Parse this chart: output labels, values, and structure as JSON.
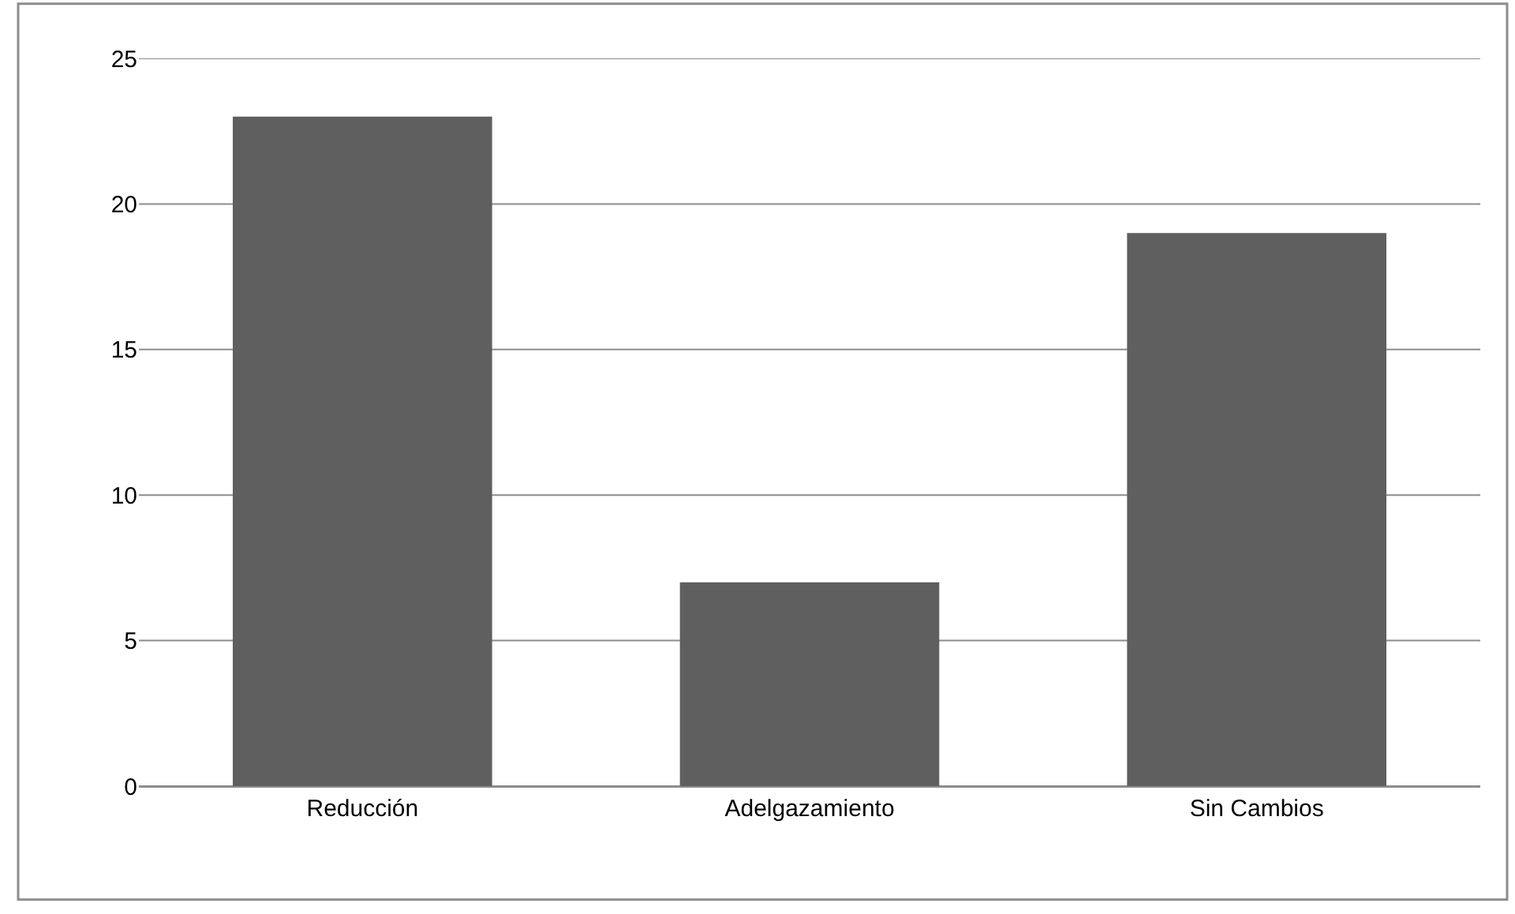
{
  "chart_data": {
    "type": "bar",
    "categories": [
      "Reducción",
      "Adelgazamiento",
      "Sin Cambios"
    ],
    "values": [
      23,
      7,
      19
    ],
    "color": "#5f5f5f",
    "ylim": [
      0,
      25
    ],
    "yticks": [
      0,
      5,
      10,
      15,
      20,
      25
    ],
    "grid": "y"
  }
}
